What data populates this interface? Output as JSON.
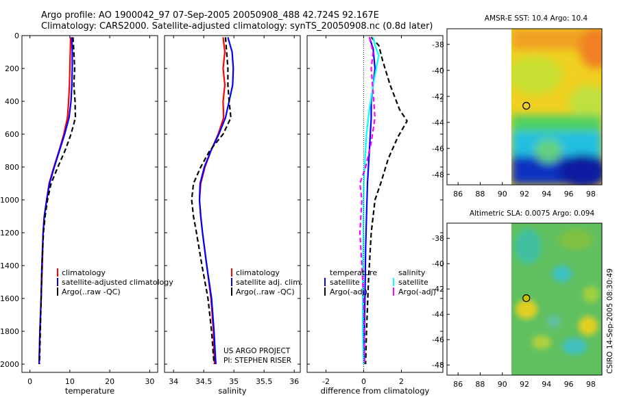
{
  "header": {
    "line1": "Argo profile: AO 1900042_97 07-Sep-2005 20050908_488 42.724S 92.167E",
    "line2": "Climatology: CARS2000. Satellite-adjusted climatology: synTS_20050908.nc (0.8d later)"
  },
  "colors": {
    "climatology": "#ff0000",
    "satellite": "#0000ff",
    "argo": "#000000",
    "satellite_salinity": "#00ffff",
    "argo_salinity": "#ff00ff"
  },
  "credits": {
    "project": "US ARGO PROJECT",
    "pi": "PI: STEPHEN RISER",
    "side": "CSIRO 14-Sep-2005 08:30:49"
  },
  "chart_data": [
    {
      "id": "temperature",
      "type": "line",
      "xlabel": "temperature",
      "xlim": [
        -2,
        32
      ],
      "xticks": [
        0,
        10,
        20,
        30
      ],
      "ylim": [
        0,
        2050
      ],
      "yticks": [
        0,
        200,
        400,
        600,
        800,
        1000,
        1200,
        1400,
        1600,
        1800,
        2000
      ],
      "yreversed": true,
      "legend": [
        "climatology",
        "satellite-adjusted climatology",
        "Argo(..raw -QC)"
      ],
      "series": [
        {
          "name": "climatology",
          "color": "#ff0000",
          "style": "solid",
          "points": [
            [
              10.2,
              10
            ],
            [
              10.1,
              100
            ],
            [
              10.0,
              200
            ],
            [
              9.9,
              300
            ],
            [
              9.7,
              400
            ],
            [
              9.4,
              500
            ],
            [
              8.5,
              600
            ],
            [
              7.3,
              700
            ],
            [
              6.0,
              800
            ],
            [
              4.8,
              900
            ],
            [
              4.2,
              1000
            ],
            [
              3.6,
              1100
            ],
            [
              3.3,
              1200
            ],
            [
              3.1,
              1400
            ],
            [
              2.8,
              1600
            ],
            [
              2.5,
              1800
            ],
            [
              2.3,
              2000
            ]
          ]
        },
        {
          "name": "satellite-adjusted climatology",
          "color": "#0000ff",
          "style": "solid",
          "points": [
            [
              10.5,
              10
            ],
            [
              10.6,
              100
            ],
            [
              10.6,
              200
            ],
            [
              10.5,
              300
            ],
            [
              10.3,
              400
            ],
            [
              9.8,
              500
            ],
            [
              8.7,
              600
            ],
            [
              7.4,
              700
            ],
            [
              6.1,
              800
            ],
            [
              4.9,
              900
            ],
            [
              4.2,
              1000
            ],
            [
              3.6,
              1100
            ],
            [
              3.3,
              1200
            ],
            [
              3.0,
              1400
            ],
            [
              2.8,
              1600
            ],
            [
              2.5,
              1800
            ],
            [
              2.3,
              2000
            ]
          ]
        },
        {
          "name": "Argo(..raw -QC)",
          "color": "#000000",
          "style": "dashed",
          "points": [
            [
              10.8,
              10
            ],
            [
              11.0,
              100
            ],
            [
              11.2,
              200
            ],
            [
              11.0,
              300
            ],
            [
              11.3,
              400
            ],
            [
              11.4,
              500
            ],
            [
              10.3,
              600
            ],
            [
              8.8,
              700
            ],
            [
              7.0,
              800
            ],
            [
              5.3,
              900
            ],
            [
              4.4,
              1000
            ],
            [
              3.8,
              1100
            ],
            [
              3.4,
              1200
            ],
            [
              3.0,
              1400
            ],
            [
              2.8,
              1600
            ],
            [
              2.6,
              1800
            ],
            [
              2.4,
              2000
            ]
          ]
        }
      ]
    },
    {
      "id": "salinity",
      "type": "line",
      "xlabel": "salinity",
      "xlim": [
        33.85,
        36.1
      ],
      "xticks": [
        34,
        34.5,
        35,
        35.5,
        36
      ],
      "xticklabels": [
        "34",
        "34.5",
        "35",
        "35.5",
        "36"
      ],
      "ylim": [
        0,
        2050
      ],
      "yreversed": true,
      "legend": [
        "climatology",
        "satellite adj. clim.",
        "Argo(..raw -QC)"
      ],
      "series": [
        {
          "name": "climatology",
          "color": "#ff0000",
          "style": "solid",
          "points": [
            [
              34.82,
              10
            ],
            [
              34.85,
              100
            ],
            [
              34.82,
              200
            ],
            [
              34.85,
              300
            ],
            [
              34.82,
              400
            ],
            [
              34.83,
              500
            ],
            [
              34.74,
              600
            ],
            [
              34.62,
              700
            ],
            [
              34.52,
              800
            ],
            [
              34.45,
              900
            ],
            [
              34.43,
              1000
            ],
            [
              34.45,
              1100
            ],
            [
              34.48,
              1200
            ],
            [
              34.55,
              1400
            ],
            [
              34.62,
              1600
            ],
            [
              34.66,
              1800
            ],
            [
              34.68,
              2000
            ]
          ]
        },
        {
          "name": "satellite adj. clim.",
          "color": "#0000ff",
          "style": "solid",
          "points": [
            [
              34.9,
              10
            ],
            [
              34.97,
              100
            ],
            [
              34.99,
              200
            ],
            [
              34.98,
              300
            ],
            [
              34.92,
              400
            ],
            [
              34.86,
              500
            ],
            [
              34.75,
              600
            ],
            [
              34.62,
              700
            ],
            [
              34.51,
              800
            ],
            [
              34.44,
              900
            ],
            [
              34.43,
              1000
            ],
            [
              34.45,
              1100
            ],
            [
              34.48,
              1200
            ],
            [
              34.55,
              1400
            ],
            [
              34.63,
              1600
            ],
            [
              34.67,
              1800
            ],
            [
              34.7,
              2000
            ]
          ]
        },
        {
          "name": "Argo(..raw -QC)",
          "color": "#000000",
          "style": "dashed",
          "points": [
            [
              34.86,
              10
            ],
            [
              34.88,
              100
            ],
            [
              34.9,
              200
            ],
            [
              34.9,
              300
            ],
            [
              34.92,
              400
            ],
            [
              34.95,
              500
            ],
            [
              34.82,
              600
            ],
            [
              34.6,
              700
            ],
            [
              34.45,
              800
            ],
            [
              34.33,
              900
            ],
            [
              34.3,
              1000
            ],
            [
              34.33,
              1100
            ],
            [
              34.38,
              1200
            ],
            [
              34.47,
              1400
            ],
            [
              34.57,
              1600
            ],
            [
              34.63,
              1800
            ],
            [
              34.67,
              2000
            ]
          ]
        }
      ]
    },
    {
      "id": "difference",
      "type": "line",
      "xlabel": "difference from climatology",
      "xlim": [
        -3,
        4.2
      ],
      "xticks": [
        -2,
        0,
        2
      ],
      "ylim": [
        0,
        2050
      ],
      "yreversed": true,
      "legend_temperature_title": "temperature",
      "legend_salinity_title": "salinity",
      "legend": [
        "satellite",
        "Argo(-adj)"
      ],
      "series": [
        {
          "name": "temperature satellite",
          "color": "#0000ff",
          "style": "solid",
          "points": [
            [
              0.3,
              10
            ],
            [
              0.5,
              80
            ],
            [
              0.6,
              200
            ],
            [
              0.5,
              300
            ],
            [
              0.4,
              400
            ],
            [
              0.4,
              500
            ],
            [
              0.3,
              700
            ],
            [
              0.2,
              900
            ],
            [
              0.15,
              1100
            ],
            [
              0.1,
              1300
            ],
            [
              0.08,
              1500
            ],
            [
              0.05,
              1700
            ],
            [
              0.03,
              1900
            ],
            [
              0.02,
              2000
            ]
          ]
        },
        {
          "name": "temperature Argo(-adj)",
          "color": "#000000",
          "style": "dashed",
          "points": [
            [
              0.4,
              10
            ],
            [
              0.8,
              60
            ],
            [
              1.0,
              150
            ],
            [
              1.4,
              300
            ],
            [
              1.9,
              450
            ],
            [
              2.3,
              520
            ],
            [
              1.8,
              620
            ],
            [
              1.3,
              750
            ],
            [
              0.9,
              900
            ],
            [
              0.6,
              1000
            ],
            [
              0.4,
              1200
            ],
            [
              0.25,
              1500
            ],
            [
              0.15,
              1800
            ],
            [
              0.1,
              2000
            ]
          ]
        },
        {
          "name": "salinity satellite",
          "color": "#00ffff",
          "style": "solid",
          "points": [
            [
              0.5,
              10
            ],
            [
              0.6,
              60
            ],
            [
              0.8,
              120
            ],
            [
              0.5,
              300
            ],
            [
              0.3,
              450
            ],
            [
              0.15,
              600
            ],
            [
              0.05,
              800
            ],
            [
              0,
              900
            ],
            [
              -0.02,
              1200
            ],
            [
              -0.05,
              1500
            ],
            [
              -0.05,
              1800
            ],
            [
              0,
              2000
            ]
          ]
        },
        {
          "name": "salinity Argo(-adj)",
          "color": "#ff00ff",
          "style": "dashed",
          "points": [
            [
              0.3,
              10
            ],
            [
              0.5,
              100
            ],
            [
              0.4,
              200
            ],
            [
              0.5,
              350
            ],
            [
              0.6,
              500
            ],
            [
              0.4,
              650
            ],
            [
              0.1,
              800
            ],
            [
              -0.2,
              900
            ],
            [
              -0.1,
              1000
            ],
            [
              -0.2,
              1200
            ],
            [
              -0.1,
              1400
            ],
            [
              0,
              1600
            ],
            [
              0.05,
              2000
            ]
          ]
        }
      ]
    },
    {
      "id": "sst-map",
      "type": "heatmap",
      "title": "AMSR-E SST: 10.4 Argo: 10.4",
      "xticks": [
        86,
        88,
        90,
        92,
        94,
        96,
        98
      ],
      "yticks": [
        -38,
        -40,
        -42,
        -44,
        -46,
        -48
      ],
      "xlim": [
        85,
        99
      ],
      "ylim": [
        -36.8,
        -48.8
      ],
      "marker": {
        "lon": 92.167,
        "lat": -42.724
      }
    },
    {
      "id": "sla-map",
      "type": "heatmap",
      "title": "Altimetric SLA: 0.0075 Argo: 0.094",
      "xticks": [
        86,
        88,
        90,
        92,
        94,
        96,
        98
      ],
      "yticks": [
        -38,
        -40,
        -42,
        -44,
        -46,
        -48
      ],
      "xlim": [
        85,
        99
      ],
      "ylim": [
        -36.8,
        -48.8
      ],
      "marker": {
        "lon": 92.167,
        "lat": -42.724
      }
    }
  ]
}
